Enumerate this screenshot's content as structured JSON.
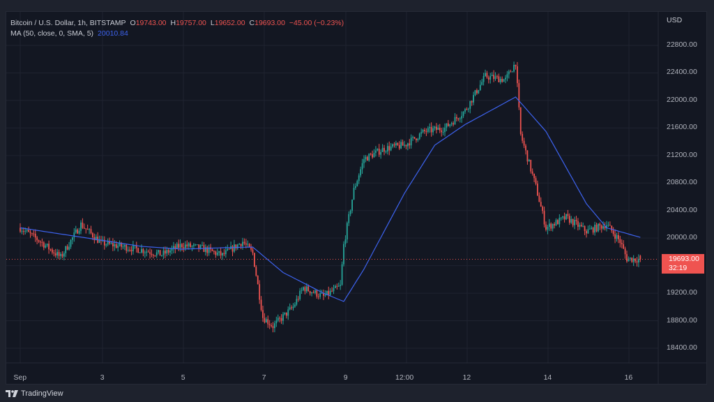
{
  "header": {
    "symbol": "Bitcoin / U.S. Dollar, 1h, BITSTAMP",
    "open_label": "O",
    "open": "19743.00",
    "high_label": "H",
    "high": "19757.00",
    "low_label": "L",
    "low": "19652.00",
    "close_label": "C",
    "close": "19693.00",
    "change": "−45.00 (−0.23%)",
    "ma_label": "MA (50, close, 0, SMA, 5)",
    "ma_value": "20010.84"
  },
  "price_axis": {
    "currency": "USD",
    "ticks": [
      "22800.00",
      "22400.00",
      "22000.00",
      "21600.00",
      "21200.00",
      "20800.00",
      "20400.00",
      "20000.00",
      "19200.00",
      "18800.00",
      "18400.00"
    ],
    "current_price": "19693.00",
    "countdown": "32:19"
  },
  "time_axis": {
    "ticks": [
      "Sep",
      "3",
      "5",
      "7",
      "9",
      "12:00",
      "12",
      "14",
      "16"
    ]
  },
  "branding": {
    "name": "TradingView"
  },
  "colors": {
    "up": "#26a69a",
    "down": "#ef5350",
    "ma": "#3d63f0",
    "bg": "#131722",
    "grid": "#1f2330"
  },
  "chart_data": {
    "type": "candlestick",
    "title": "Bitcoin / U.S. Dollar, 1h, BITSTAMP",
    "xlabel": "",
    "ylabel": "USD",
    "ylim": [
      18300,
      22900
    ],
    "y_ticks": [
      18400,
      18800,
      19200,
      19600,
      20000,
      20400,
      20800,
      21200,
      21600,
      22000,
      22400,
      22800
    ],
    "x_ticks": [
      "Sep",
      "3",
      "5",
      "7",
      "9",
      "12:00",
      "12",
      "14",
      "16"
    ],
    "grid": true,
    "legend": [
      "MA (50, close, 0, SMA, 5) 20010.84"
    ],
    "approx_close_keypoints": [
      {
        "t": "Sep 1 00:00",
        "price": 20150
      },
      {
        "t": "Sep 1 12:00",
        "price": 19950
      },
      {
        "t": "Sep 2 00:00",
        "price": 19720
      },
      {
        "t": "Sep 2 12:00",
        "price": 20200
      },
      {
        "t": "Sep 3 00:00",
        "price": 19930
      },
      {
        "t": "Sep 4 00:00",
        "price": 19830
      },
      {
        "t": "Sep 4 12:00",
        "price": 19760
      },
      {
        "t": "Sep 5 00:00",
        "price": 19900
      },
      {
        "t": "Sep 5 12:00",
        "price": 19850
      },
      {
        "t": "Sep 6 00:00",
        "price": 19750
      },
      {
        "t": "Sep 6 12:00",
        "price": 19950
      },
      {
        "t": "Sep 6 18:00",
        "price": 19780
      },
      {
        "t": "Sep 7 00:00",
        "price": 18850
      },
      {
        "t": "Sep 7 06:00",
        "price": 18720
      },
      {
        "t": "Sep 7 18:00",
        "price": 19000
      },
      {
        "t": "Sep 8 00:00",
        "price": 19280
      },
      {
        "t": "Sep 8 12:00",
        "price": 19150
      },
      {
        "t": "Sep 8 22:00",
        "price": 19300
      },
      {
        "t": "Sep 9 00:00",
        "price": 19900
      },
      {
        "t": "Sep 9 06:00",
        "price": 20700
      },
      {
        "t": "Sep 9 12:00",
        "price": 21150
      },
      {
        "t": "Sep 10 00:00",
        "price": 21300
      },
      {
        "t": "Sep 10 12:00",
        "price": 21350
      },
      {
        "t": "Sep 11 00:00",
        "price": 21550
      },
      {
        "t": "Sep 11 12:00",
        "price": 21600
      },
      {
        "t": "Sep 12 00:00",
        "price": 21850
      },
      {
        "t": "Sep 12 12:00",
        "price": 22350
      },
      {
        "t": "Sep 13 00:00",
        "price": 22300
      },
      {
        "t": "Sep 13 06:00",
        "price": 22550
      },
      {
        "t": "Sep 13 09:00",
        "price": 21500
      },
      {
        "t": "Sep 13 18:00",
        "price": 20750
      },
      {
        "t": "Sep 14 00:00",
        "price": 20150
      },
      {
        "t": "Sep 14 12:00",
        "price": 20300
      },
      {
        "t": "Sep 15 00:00",
        "price": 20100
      },
      {
        "t": "Sep 15 12:00",
        "price": 20200
      },
      {
        "t": "Sep 15 20:00",
        "price": 19950
      },
      {
        "t": "Sep 16 00:00",
        "price": 19700
      },
      {
        "t": "Sep 16 08:00",
        "price": 19693
      }
    ],
    "ma_series_keypoints": [
      {
        "t": "Sep 1 00:00",
        "value": 20150
      },
      {
        "t": "Sep 3 00:00",
        "value": 19970
      },
      {
        "t": "Sep 4 00:00",
        "value": 19880
      },
      {
        "t": "Sep 5 00:00",
        "value": 19840
      },
      {
        "t": "Sep 6 00:00",
        "value": 19860
      },
      {
        "t": "Sep 6 18:00",
        "value": 19870
      },
      {
        "t": "Sep 7 12:00",
        "value": 19500
      },
      {
        "t": "Sep 8 12:00",
        "value": 19200
      },
      {
        "t": "Sep 9 00:00",
        "value": 19080
      },
      {
        "t": "Sep 9 12:00",
        "value": 19550
      },
      {
        "t": "Sep 10 12:00",
        "value": 20650
      },
      {
        "t": "Sep 11 06:00",
        "value": 21350
      },
      {
        "t": "Sep 12 00:00",
        "value": 21650
      },
      {
        "t": "Sep 13 06:00",
        "value": 22050
      },
      {
        "t": "Sep 14 00:00",
        "value": 21550
      },
      {
        "t": "Sep 15 00:00",
        "value": 20500
      },
      {
        "t": "Sep 15 12:00",
        "value": 20150
      },
      {
        "t": "Sep 16 08:00",
        "value": 20010.84
      }
    ],
    "last": {
      "open": 19743,
      "high": 19757,
      "low": 19652,
      "close": 19693,
      "change": -45,
      "change_pct": -0.23
    }
  }
}
